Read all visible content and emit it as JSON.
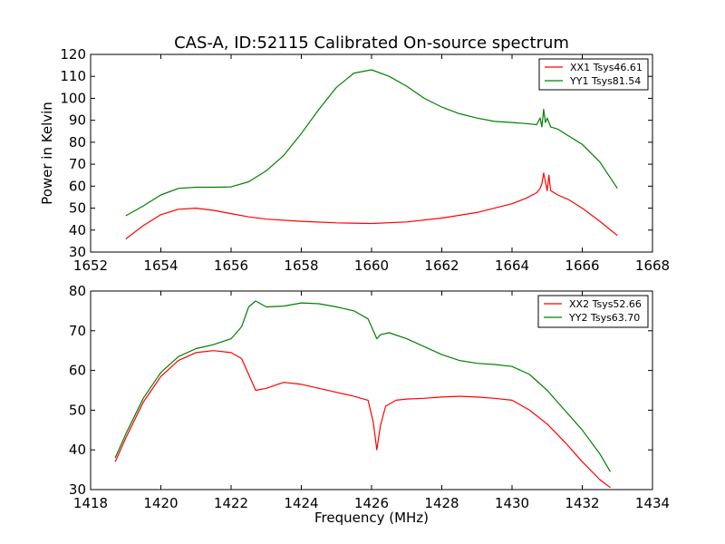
{
  "figure": {
    "title": "CAS-A, ID:52115 Calibrated On-source spectrum",
    "xlabel": "Frequency (MHz)",
    "ylabel": "Power in Kelvin"
  },
  "chart_data": [
    {
      "type": "line",
      "title": "CAS-A, ID:52115 Calibrated On-source spectrum",
      "xlabel": "",
      "ylabel": "Power in Kelvin",
      "xlim": [
        1652,
        1668
      ],
      "ylim": [
        30,
        120
      ],
      "xticks": [
        1652,
        1654,
        1656,
        1658,
        1660,
        1662,
        1664,
        1666,
        1668
      ],
      "yticks": [
        30,
        40,
        50,
        60,
        70,
        80,
        90,
        100,
        110,
        120
      ],
      "legend_position": "top-right",
      "grid": false,
      "series": [
        {
          "name": "XX1 Tsys46.61",
          "color": "#ff0000",
          "x": [
            1653.0,
            1653.5,
            1654.0,
            1654.5,
            1655.0,
            1655.5,
            1656.0,
            1656.5,
            1657.0,
            1658.0,
            1659.0,
            1660.0,
            1661.0,
            1662.0,
            1663.0,
            1663.5,
            1664.0,
            1664.4,
            1664.7,
            1664.8,
            1664.85,
            1664.9,
            1664.95,
            1665.0,
            1665.05,
            1665.1,
            1665.3,
            1665.6,
            1666.0,
            1666.5,
            1667.0
          ],
          "y": [
            36,
            42,
            47,
            49.5,
            50,
            49,
            47.5,
            46,
            45,
            44,
            43.3,
            43,
            43.7,
            45.5,
            48,
            50,
            52,
            54.5,
            57,
            59,
            61,
            66,
            62,
            58,
            65,
            58,
            56,
            54,
            50,
            44,
            37.5
          ]
        },
        {
          "name": "YY1 Tsys81.54",
          "color": "#008000",
          "x": [
            1653.0,
            1653.5,
            1654.0,
            1654.5,
            1655.0,
            1655.5,
            1656.0,
            1656.5,
            1657.0,
            1657.5,
            1658.0,
            1658.5,
            1659.0,
            1659.5,
            1660.0,
            1660.5,
            1661.0,
            1661.5,
            1662.0,
            1662.5,
            1663.0,
            1663.5,
            1664.0,
            1664.4,
            1664.7,
            1664.8,
            1664.85,
            1664.9,
            1664.95,
            1665.0,
            1665.05,
            1665.1,
            1665.3,
            1665.6,
            1666.0,
            1666.5,
            1667.0
          ],
          "y": [
            46.5,
            51,
            56,
            59,
            59.5,
            59.5,
            59.7,
            62,
            67,
            74,
            84,
            95,
            105,
            111.5,
            113,
            110,
            105.5,
            100,
            96,
            93,
            91,
            89.5,
            89,
            88.5,
            88,
            91,
            87,
            95,
            89,
            91,
            89,
            87,
            86,
            83,
            79,
            71,
            59
          ]
        }
      ]
    },
    {
      "type": "line",
      "title": "",
      "xlabel": "Frequency (MHz)",
      "ylabel": "",
      "xlim": [
        1418,
        1434
      ],
      "ylim": [
        30,
        80
      ],
      "xticks": [
        1418,
        1420,
        1422,
        1424,
        1426,
        1428,
        1430,
        1432,
        1434
      ],
      "yticks": [
        30,
        40,
        50,
        60,
        70,
        80
      ],
      "legend_position": "top-right",
      "grid": false,
      "series": [
        {
          "name": "XX2 Tsys52.66",
          "color": "#ff0000",
          "x": [
            1418.7,
            1419.0,
            1419.5,
            1420.0,
            1420.5,
            1421.0,
            1421.5,
            1422.0,
            1422.3,
            1422.5,
            1422.7,
            1423.0,
            1423.5,
            1424.0,
            1424.5,
            1425.0,
            1425.5,
            1425.9,
            1426.05,
            1426.15,
            1426.25,
            1426.4,
            1426.7,
            1427.0,
            1427.5,
            1428.0,
            1428.5,
            1429.0,
            1429.5,
            1430.0,
            1430.5,
            1431.0,
            1431.5,
            1432.0,
            1432.5,
            1432.8
          ],
          "y": [
            37,
            43,
            52,
            58.5,
            62.5,
            64.5,
            65,
            64.5,
            63,
            59,
            55,
            55.5,
            57,
            56.5,
            55.5,
            54.5,
            53.5,
            52.5,
            47,
            40,
            46,
            51,
            52.5,
            52.8,
            53,
            53.3,
            53.5,
            53.3,
            53,
            52.5,
            50,
            46.5,
            42,
            37,
            32.5,
            30.5
          ]
        },
        {
          "name": "YY2 Tsys63.70",
          "color": "#008000",
          "x": [
            1418.7,
            1419.0,
            1419.5,
            1420.0,
            1420.5,
            1421.0,
            1421.5,
            1422.0,
            1422.3,
            1422.5,
            1422.7,
            1423.0,
            1423.5,
            1424.0,
            1424.5,
            1425.0,
            1425.5,
            1425.9,
            1426.05,
            1426.15,
            1426.25,
            1426.5,
            1427.0,
            1427.5,
            1428.0,
            1428.5,
            1429.0,
            1429.5,
            1430.0,
            1430.5,
            1431.0,
            1431.5,
            1432.0,
            1432.5,
            1432.8
          ],
          "y": [
            38,
            44,
            53,
            59.5,
            63.5,
            65.5,
            66.5,
            68,
            71,
            76,
            77.5,
            76,
            76.2,
            77,
            76.8,
            76,
            75,
            73,
            70,
            68,
            69,
            69.5,
            68,
            66,
            64,
            62.5,
            61.8,
            61.5,
            61,
            59,
            55,
            50,
            45,
            39,
            34.5
          ]
        }
      ]
    }
  ]
}
